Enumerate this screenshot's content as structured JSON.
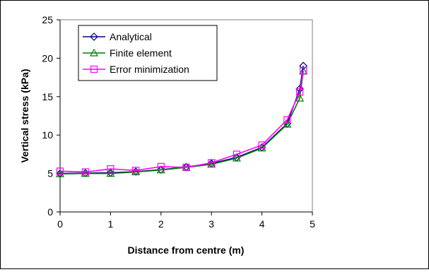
{
  "chart_data": {
    "type": "line",
    "title": "",
    "xlabel": "Distance from centre (m)",
    "ylabel": "Vertical stress (kPa)",
    "xlim": [
      0,
      5
    ],
    "ylim": [
      0,
      25
    ],
    "x_ticks": [
      "0",
      "1",
      "2",
      "3",
      "4",
      "5"
    ],
    "y_ticks": [
      "0",
      "5",
      "10",
      "15",
      "20",
      "25"
    ],
    "grid": false,
    "legend_position": "top-left",
    "series": [
      {
        "name": "Analytical",
        "color": "#000080",
        "marker": "diamond",
        "x": [
          0,
          0.5,
          1,
          1.5,
          2,
          2.5,
          3,
          3.5,
          4,
          4.5,
          4.75,
          4.82
        ],
        "y": [
          5.0,
          5.05,
          5.1,
          5.25,
          5.5,
          5.85,
          6.3,
          7.1,
          8.4,
          11.5,
          16.0,
          19.0
        ]
      },
      {
        "name": "Finite element",
        "color": "#008000",
        "marker": "triangle",
        "x": [
          0,
          0.5,
          1,
          1.5,
          2,
          2.5,
          3,
          3.5,
          4,
          4.5,
          4.75,
          4.82
        ],
        "y": [
          4.95,
          5.0,
          5.0,
          5.2,
          5.45,
          5.8,
          6.2,
          7.0,
          8.3,
          11.4,
          14.8,
          18.3
        ]
      },
      {
        "name": "Error minimization",
        "color": "#ff00ff",
        "marker": "square",
        "x": [
          0,
          0.5,
          1,
          1.5,
          2,
          2.5,
          3,
          3.5,
          4,
          4.5,
          4.75,
          4.82
        ],
        "y": [
          5.3,
          5.2,
          5.6,
          5.4,
          5.9,
          5.8,
          6.4,
          7.5,
          8.7,
          12.0,
          15.6,
          18.4
        ]
      }
    ]
  }
}
